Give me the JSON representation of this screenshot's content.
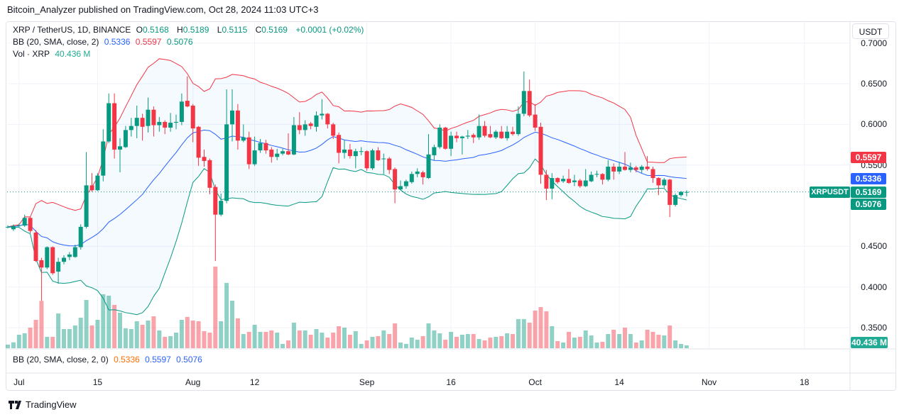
{
  "header": {
    "published": "Bitcoin_Analyzer published on TradingView.com, Oct 28, 2024 11:03 UTC+3"
  },
  "legend": {
    "symbol": "XRP / TetherUS, 1D, BINANCE",
    "o_label": "O",
    "o": "0.5168",
    "h_label": "H",
    "h": "0.5189",
    "l_label": "L",
    "l": "0.5115",
    "c_label": "C",
    "c": "0.5169",
    "change": "+0.0001 (+0.02%)",
    "bb_label": "BB (20, SMA, close, 2)",
    "bb_basis": "0.5336",
    "bb_upper": "0.5597",
    "bb_lower": "0.5076",
    "vol_label": "Vol · XRP",
    "vol": "40.436 M"
  },
  "lower_pane": {
    "label": "BB (20, SMA, close, 2, 0)",
    "v1": "0.5336",
    "v2": "0.5597",
    "v3": "0.5076"
  },
  "price_axis": {
    "currency_button": "USDT",
    "ticks": [
      "0.7000",
      "0.6500",
      "0.6000",
      "0.5500",
      "0.4500",
      "0.4000",
      "0.3500"
    ],
    "badges": {
      "upper": "0.5597",
      "basis": "0.5336",
      "last": "0.5169",
      "lower": "0.5076",
      "volume": "40.436 M"
    },
    "symbol_tag": "XRPUSDT"
  },
  "time_axis": {
    "ticks": [
      "Jul",
      "15",
      "Aug",
      "12",
      "Sep",
      "16",
      "Oct",
      "14",
      "Nov",
      "18"
    ]
  },
  "footer": {
    "brand": "TradingView"
  },
  "colors": {
    "up": "#089981",
    "down": "#f23645",
    "bb_basis": "#2962ff",
    "bb_upper": "#f23645",
    "bb_lower": "#089981",
    "bb_fill": "#2196f3"
  },
  "chart_data": {
    "type": "candlestick",
    "symbol": "XRPUSDT",
    "interval": "1D",
    "first_date": "2024-06-29",
    "last_date": "2024-10-28",
    "ylim": [
      0.33,
      0.7
    ],
    "indicators": [
      "BB (20, SMA, close, 2)",
      "Volume"
    ],
    "ohlc": [
      [
        0.474,
        0.476,
        0.472,
        0.474
      ],
      [
        0.471,
        0.477,
        0.469,
        0.475
      ],
      [
        0.476,
        0.478,
        0.474,
        0.476
      ],
      [
        0.4755,
        0.489,
        0.474,
        0.485
      ],
      [
        0.485,
        0.487,
        0.466,
        0.469
      ],
      [
        0.467,
        0.47,
        0.431,
        0.432
      ],
      [
        0.433,
        0.436,
        0.383,
        0.424
      ],
      [
        0.424,
        0.45,
        0.422,
        0.449
      ],
      [
        0.449,
        0.45,
        0.415,
        0.417
      ],
      [
        0.419,
        0.436,
        0.404,
        0.431
      ],
      [
        0.431,
        0.439,
        0.428,
        0.436
      ],
      [
        0.437,
        0.443,
        0.433,
        0.44
      ],
      [
        0.437,
        0.452,
        0.436,
        0.449
      ],
      [
        0.449,
        0.477,
        0.446,
        0.474
      ],
      [
        0.474,
        0.566,
        0.472,
        0.525
      ],
      [
        0.525,
        0.54,
        0.517,
        0.519
      ],
      [
        0.519,
        0.54,
        0.518,
        0.537
      ],
      [
        0.537,
        0.594,
        0.53,
        0.579
      ],
      [
        0.579,
        0.638,
        0.577,
        0.626
      ],
      [
        0.626,
        0.638,
        0.558,
        0.569
      ],
      [
        0.569,
        0.583,
        0.541,
        0.573
      ],
      [
        0.572,
        0.598,
        0.571,
        0.593
      ],
      [
        0.593,
        0.608,
        0.585,
        0.598
      ],
      [
        0.598,
        0.623,
        0.583,
        0.608
      ],
      [
        0.608,
        0.613,
        0.58,
        0.597
      ],
      [
        0.598,
        0.633,
        0.59,
        0.618
      ],
      [
        0.618,
        0.622,
        0.585,
        0.599
      ],
      [
        0.599,
        0.609,
        0.591,
        0.603
      ],
      [
        0.603,
        0.605,
        0.588,
        0.596
      ],
      [
        0.596,
        0.614,
        0.591,
        0.602
      ],
      [
        0.602,
        0.612,
        0.594,
        0.603
      ],
      [
        0.603,
        0.638,
        0.599,
        0.628
      ],
      [
        0.629,
        0.659,
        0.621,
        0.622
      ],
      [
        0.623,
        0.625,
        0.578,
        0.595
      ],
      [
        0.597,
        0.598,
        0.549,
        0.559
      ],
      [
        0.56,
        0.569,
        0.548,
        0.555
      ],
      [
        0.556,
        0.558,
        0.514,
        0.522
      ],
      [
        0.523,
        0.526,
        0.432,
        0.489
      ],
      [
        0.489,
        0.515,
        0.487,
        0.506
      ],
      [
        0.506,
        0.643,
        0.503,
        0.6
      ],
      [
        0.6,
        0.643,
        0.579,
        0.617
      ],
      [
        0.617,
        0.625,
        0.569,
        0.58
      ],
      [
        0.58,
        0.6,
        0.578,
        0.584
      ],
      [
        0.584,
        0.591,
        0.545,
        0.551
      ],
      [
        0.551,
        0.585,
        0.549,
        0.568
      ],
      [
        0.568,
        0.582,
        0.565,
        0.577
      ],
      [
        0.577,
        0.581,
        0.564,
        0.568
      ],
      [
        0.569,
        0.572,
        0.553,
        0.56
      ],
      [
        0.56,
        0.57,
        0.556,
        0.564
      ],
      [
        0.564,
        0.57,
        0.562,
        0.567
      ],
      [
        0.567,
        0.589,
        0.562,
        0.563
      ],
      [
        0.563,
        0.609,
        0.562,
        0.599
      ],
      [
        0.599,
        0.615,
        0.588,
        0.593
      ],
      [
        0.593,
        0.605,
        0.586,
        0.6
      ],
      [
        0.601,
        0.603,
        0.594,
        0.598
      ],
      [
        0.597,
        0.616,
        0.591,
        0.611
      ],
      [
        0.611,
        0.631,
        0.606,
        0.613
      ],
      [
        0.613,
        0.614,
        0.595,
        0.6
      ],
      [
        0.6,
        0.602,
        0.582,
        0.586
      ],
      [
        0.587,
        0.59,
        0.552,
        0.565
      ],
      [
        0.565,
        0.581,
        0.558,
        0.569
      ],
      [
        0.569,
        0.576,
        0.558,
        0.561
      ],
      [
        0.561,
        0.57,
        0.546,
        0.567
      ],
      [
        0.567,
        0.572,
        0.562,
        0.567
      ],
      [
        0.567,
        0.568,
        0.543,
        0.546
      ],
      [
        0.546,
        0.57,
        0.544,
        0.568
      ],
      [
        0.568,
        0.572,
        0.555,
        0.556
      ],
      [
        0.558,
        0.564,
        0.539,
        0.558
      ],
      [
        0.558,
        0.56,
        0.539,
        0.544
      ],
      [
        0.545,
        0.547,
        0.503,
        0.52
      ],
      [
        0.52,
        0.531,
        0.519,
        0.524
      ],
      [
        0.524,
        0.532,
        0.521,
        0.53
      ],
      [
        0.529,
        0.542,
        0.527,
        0.539
      ],
      [
        0.539,
        0.546,
        0.535,
        0.542
      ],
      [
        0.541,
        0.543,
        0.526,
        0.535
      ],
      [
        0.534,
        0.588,
        0.533,
        0.563
      ],
      [
        0.562,
        0.575,
        0.556,
        0.572
      ],
      [
        0.572,
        0.6,
        0.57,
        0.596
      ],
      [
        0.596,
        0.597,
        0.569,
        0.57
      ],
      [
        0.57,
        0.591,
        0.561,
        0.586
      ],
      [
        0.586,
        0.591,
        0.578,
        0.583
      ],
      [
        0.583,
        0.586,
        0.563,
        0.585
      ],
      [
        0.585,
        0.593,
        0.582,
        0.586
      ],
      [
        0.587,
        0.589,
        0.577,
        0.584
      ],
      [
        0.584,
        0.612,
        0.581,
        0.598
      ],
      [
        0.598,
        0.604,
        0.584,
        0.586
      ],
      [
        0.588,
        0.598,
        0.583,
        0.584
      ],
      [
        0.584,
        0.593,
        0.582,
        0.591
      ],
      [
        0.591,
        0.598,
        0.582,
        0.583
      ],
      [
        0.583,
        0.598,
        0.58,
        0.591
      ],
      [
        0.591,
        0.597,
        0.586,
        0.588
      ],
      [
        0.588,
        0.622,
        0.586,
        0.613
      ],
      [
        0.613,
        0.665,
        0.61,
        0.641
      ],
      [
        0.641,
        0.655,
        0.609,
        0.611
      ],
      [
        0.612,
        0.625,
        0.592,
        0.596
      ],
      [
        0.597,
        0.602,
        0.527,
        0.538
      ],
      [
        0.538,
        0.544,
        0.507,
        0.521
      ],
      [
        0.521,
        0.54,
        0.508,
        0.534
      ],
      [
        0.534,
        0.535,
        0.527,
        0.529
      ],
      [
        0.53,
        0.537,
        0.528,
        0.533
      ],
      [
        0.533,
        0.545,
        0.527,
        0.528
      ],
      [
        0.529,
        0.538,
        0.524,
        0.531
      ],
      [
        0.531,
        0.533,
        0.522,
        0.524
      ],
      [
        0.524,
        0.545,
        0.523,
        0.531
      ],
      [
        0.53,
        0.542,
        0.529,
        0.538
      ],
      [
        0.539,
        0.543,
        0.535,
        0.539
      ],
      [
        0.539,
        0.54,
        0.526,
        0.532
      ],
      [
        0.532,
        0.556,
        0.53,
        0.548
      ],
      [
        0.548,
        0.552,
        0.532,
        0.542
      ],
      [
        0.542,
        0.554,
        0.539,
        0.548
      ],
      [
        0.548,
        0.566,
        0.543,
        0.544
      ],
      [
        0.544,
        0.553,
        0.541,
        0.547
      ],
      [
        0.547,
        0.549,
        0.541,
        0.544
      ],
      [
        0.544,
        0.55,
        0.54,
        0.548
      ],
      [
        0.548,
        0.561,
        0.543,
        0.545
      ],
      [
        0.545,
        0.548,
        0.528,
        0.534
      ],
      [
        0.534,
        0.535,
        0.513,
        0.525
      ],
      [
        0.525,
        0.534,
        0.522,
        0.532
      ],
      [
        0.532,
        0.533,
        0.486,
        0.501
      ],
      [
        0.501,
        0.515,
        0.499,
        0.513
      ],
      [
        0.513,
        0.518,
        0.511,
        0.517
      ],
      [
        0.5168,
        0.5189,
        0.5115,
        0.5169
      ]
    ],
    "volume_millions": [
      51,
      84,
      192,
      212,
      293,
      404,
      674,
      162,
      162,
      495,
      273,
      273,
      324,
      435,
      687,
      324,
      404,
      768,
      748,
      617,
      506,
      283,
      273,
      384,
      334,
      394,
      455,
      253,
      162,
      172,
      222,
      404,
      445,
      394,
      384,
      243,
      222,
      1163,
      384,
      930,
      677,
      425,
      202,
      233,
      334,
      233,
      233,
      253,
      222,
      61,
      111,
      364,
      253,
      253,
      192,
      273,
      222,
      152,
      222,
      313,
      293,
      192,
      243,
      61,
      111,
      162,
      172,
      253,
      202,
      354,
      81,
      61,
      152,
      121,
      172,
      354,
      253,
      212,
      121,
      233,
      162,
      192,
      202,
      202,
      131,
      111,
      152,
      162,
      172,
      212,
      202,
      415,
      415,
      364,
      536,
      586,
      526,
      313,
      101,
      81,
      233,
      152,
      162,
      253,
      182,
      81,
      91,
      202,
      263,
      202,
      293,
      202,
      81,
      111,
      263,
      233,
      192,
      182,
      324,
      111,
      61,
      40.436
    ]
  }
}
